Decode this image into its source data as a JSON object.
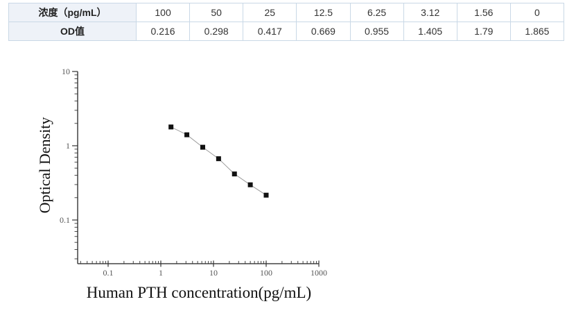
{
  "table": {
    "rows": [
      {
        "label": "浓度（pg/mL）",
        "values": [
          "100",
          "50",
          "25",
          "12.5",
          "6.25",
          "3.12",
          "1.56",
          "0"
        ]
      },
      {
        "label": "OD值",
        "values": [
          "0.216",
          "0.298",
          "0.417",
          "0.669",
          "0.955",
          "1.405",
          "1.79",
          "1.865"
        ]
      }
    ]
  },
  "chart_data": {
    "type": "line",
    "x": [
      1.56,
      3.12,
      6.25,
      12.5,
      25,
      50,
      100
    ],
    "y": [
      1.79,
      1.405,
      0.955,
      0.669,
      0.417,
      0.298,
      0.216
    ],
    "xlabel": "Human PTH concentration(pg/mL)",
    "ylabel": "Optical Density",
    "x_scale": "log",
    "y_scale": "log",
    "x_ticks": [
      0.1,
      1,
      10,
      100,
      1000
    ],
    "y_ticks": [
      0.1,
      1,
      10
    ],
    "xlim": [
      0.0264,
      1000
    ],
    "ylim": [
      0.0258,
      10
    ],
    "grid": false,
    "legend": "none",
    "marker": "square",
    "marker_color": "#111111",
    "line_color": "#9a9a9a",
    "axis_color": "#333333",
    "tick_label_color": "#555555"
  }
}
